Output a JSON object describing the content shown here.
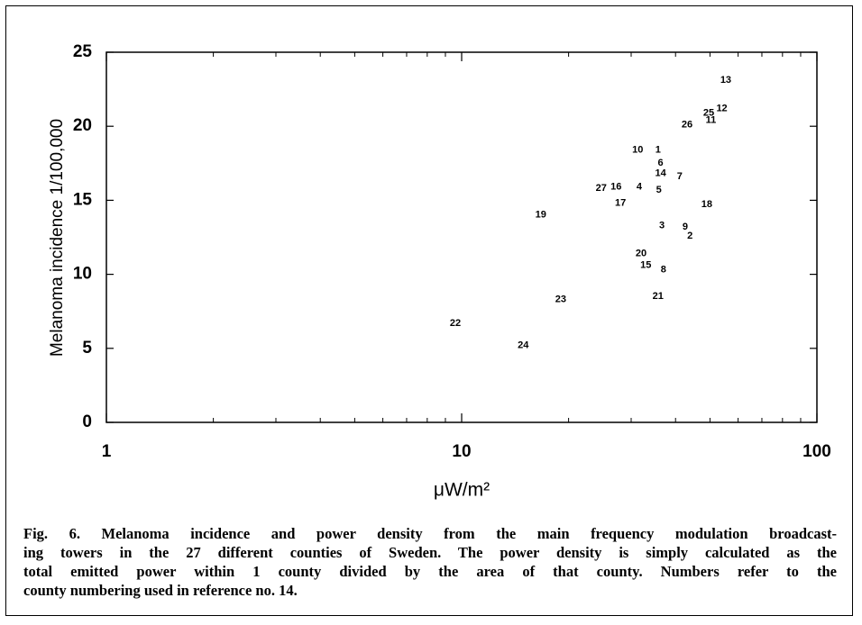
{
  "chart_data": {
    "type": "scatter",
    "xlabel": "μW/m²",
    "ylabel": "Melanoma incidence 1/100,000",
    "xscale": "log",
    "xlim": [
      1,
      100
    ],
    "ylim": [
      0,
      25
    ],
    "xticks": [
      1,
      10,
      100
    ],
    "xminor_ticks": [
      2,
      3,
      4,
      5,
      6,
      7,
      8,
      9,
      20,
      30,
      40,
      50,
      60,
      70,
      80,
      90
    ],
    "yticks": [
      0,
      5,
      10,
      15,
      20,
      25
    ],
    "color": "#000000",
    "series": [
      {
        "point_labels": [
          "13",
          "12",
          "25",
          "11",
          "26",
          "10",
          "1",
          "6",
          "14",
          "7",
          "4",
          "5",
          "27",
          "16",
          "17",
          "18",
          "19",
          "3",
          "9",
          "2",
          "20",
          "15",
          "8",
          "21",
          "23",
          "22",
          "24"
        ],
        "x": [
          55.4,
          54,
          49.6,
          50.3,
          43.1,
          31.3,
          35.7,
          36.3,
          36.3,
          41.1,
          31.6,
          35.9,
          24.7,
          27.2,
          28.0,
          49,
          16.7,
          36.6,
          42.6,
          43.9,
          32,
          33,
          37,
          35.7,
          19.0,
          9.6,
          14.9
        ],
        "values": [
          23.1,
          21.2,
          20.9,
          20.4,
          20.1,
          18.4,
          18.4,
          17.5,
          16.8,
          16.6,
          15.9,
          15.7,
          15.8,
          15.9,
          14.8,
          14.7,
          14.0,
          13.3,
          13.2,
          12.6,
          11.4,
          10.6,
          10.3,
          8.5,
          8.3,
          6.7,
          5.2
        ]
      }
    ],
    "caption_lines": [
      "Fig. 6. Melanoma incidence and power density from the main frequency modulation broadcast-",
      "ing towers in the 27 different counties of Sweden. The power density is simply calculated as the",
      "total emitted power within 1 county divided by the area of that county. Numbers refer to the",
      "county numbering used in reference no. 14."
    ]
  }
}
